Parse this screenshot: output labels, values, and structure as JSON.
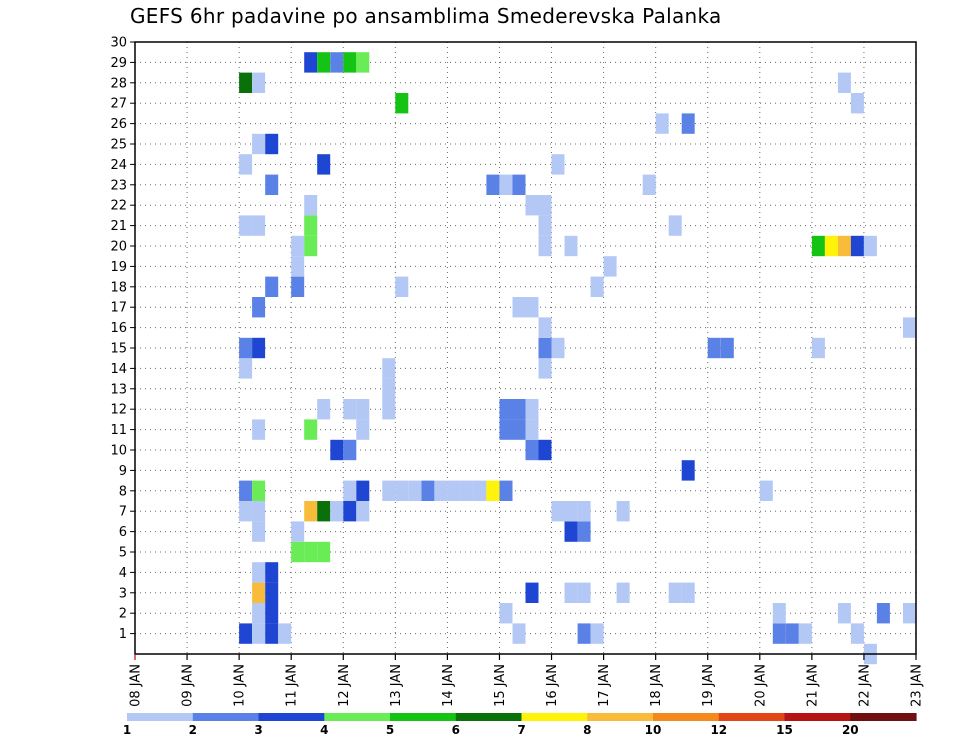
{
  "chart_data": {
    "type": "heatmap",
    "title": "GEFS 6hr padavine po ansamblima Smederevska Palanka",
    "x_tick_labels": [
      "08 JAN",
      "09 JAN",
      "10 JAN",
      "11 JAN",
      "12 JAN",
      "13 JAN",
      "14 JAN",
      "15 JAN",
      "16 JAN",
      "17 JAN",
      "18 JAN",
      "19 JAN",
      "20 JAN",
      "21 JAN",
      "22 JAN",
      "23 JAN"
    ],
    "y_tick_labels": [
      "1",
      "2",
      "3",
      "4",
      "5",
      "6",
      "7",
      "8",
      "9",
      "10",
      "11",
      "12",
      "13",
      "14",
      "15",
      "16",
      "17",
      "18",
      "19",
      "20",
      "21",
      "22",
      "23",
      "24",
      "25",
      "26",
      "27",
      "28",
      "29",
      "30"
    ],
    "x_range_days": [
      8,
      23
    ],
    "y_range_members": [
      0,
      30
    ],
    "grid": "dotted",
    "colorbar": {
      "placement": "bottom",
      "labels": [
        "1",
        "2",
        "3",
        "4",
        "5",
        "6",
        "7",
        "8",
        "10",
        "12",
        "15",
        "20"
      ],
      "colors": [
        "#b4c8f5",
        "#5a82e6",
        "#1e46d2",
        "#69ec55",
        "#14c314",
        "#0a700a",
        "#fff30a",
        "#f8bc3a",
        "#f48a1e",
        "#e24614",
        "#b41414",
        "#701010"
      ]
    },
    "cell_duration_days": 0.25,
    "cells": [
      {
        "t": 10.0,
        "m": 1,
        "c": 2
      },
      {
        "t": 10.25,
        "m": 1,
        "c": 0
      },
      {
        "t": 10.5,
        "m": 1,
        "c": 2
      },
      {
        "t": 10.75,
        "m": 1,
        "c": 0
      },
      {
        "t": 10.25,
        "m": 2,
        "c": 0
      },
      {
        "t": 10.5,
        "m": 2,
        "c": 2
      },
      {
        "t": 10.25,
        "m": 3,
        "c": 7
      },
      {
        "t": 10.5,
        "m": 3,
        "c": 2
      },
      {
        "t": 10.25,
        "m": 4,
        "c": 0
      },
      {
        "t": 10.5,
        "m": 4,
        "c": 2
      },
      {
        "t": 11.0,
        "m": 5,
        "c": 3
      },
      {
        "t": 11.25,
        "m": 5,
        "c": 3
      },
      {
        "t": 11.5,
        "m": 5,
        "c": 3
      },
      {
        "t": 10.25,
        "m": 6,
        "c": 0
      },
      {
        "t": 11.0,
        "m": 6,
        "c": 0
      },
      {
        "t": 10.0,
        "m": 7,
        "c": 0
      },
      {
        "t": 10.25,
        "m": 7,
        "c": 0
      },
      {
        "t": 11.25,
        "m": 7,
        "c": 7
      },
      {
        "t": 11.5,
        "m": 7,
        "c": 5
      },
      {
        "t": 11.75,
        "m": 7,
        "c": 0
      },
      {
        "t": 12.0,
        "m": 7,
        "c": 2
      },
      {
        "t": 12.25,
        "m": 7,
        "c": 0
      },
      {
        "t": 10.0,
        "m": 8,
        "c": 1
      },
      {
        "t": 10.25,
        "m": 8,
        "c": 3
      },
      {
        "t": 12.0,
        "m": 8,
        "c": 0
      },
      {
        "t": 12.25,
        "m": 8,
        "c": 2
      },
      {
        "t": 12.75,
        "m": 8,
        "c": 0
      },
      {
        "t": 13.0,
        "m": 8,
        "c": 0
      },
      {
        "t": 13.25,
        "m": 8,
        "c": 0
      },
      {
        "t": 13.5,
        "m": 8,
        "c": 1
      },
      {
        "t": 13.75,
        "m": 8,
        "c": 0
      },
      {
        "t": 14.0,
        "m": 8,
        "c": 0
      },
      {
        "t": 14.25,
        "m": 8,
        "c": 0
      },
      {
        "t": 14.5,
        "m": 8,
        "c": 0
      },
      {
        "t": 14.75,
        "m": 8,
        "c": 6
      },
      {
        "t": 15.0,
        "m": 8,
        "c": 1
      },
      {
        "t": 11.75,
        "m": 10,
        "c": 2
      },
      {
        "t": 12.0,
        "m": 10,
        "c": 1
      },
      {
        "t": 10.25,
        "m": 11,
        "c": 0
      },
      {
        "t": 11.25,
        "m": 11,
        "c": 3
      },
      {
        "t": 12.25,
        "m": 11,
        "c": 0
      },
      {
        "t": 11.5,
        "m": 12,
        "c": 0
      },
      {
        "t": 12.0,
        "m": 12,
        "c": 0
      },
      {
        "t": 12.25,
        "m": 12,
        "c": 0
      },
      {
        "t": 12.75,
        "m": 12,
        "c": 0
      },
      {
        "t": 12.75,
        "m": 13,
        "c": 0
      },
      {
        "t": 10.0,
        "m": 14,
        "c": 0
      },
      {
        "t": 12.75,
        "m": 14,
        "c": 0
      },
      {
        "t": 10.0,
        "m": 15,
        "c": 1
      },
      {
        "t": 10.25,
        "m": 15,
        "c": 2
      },
      {
        "t": 10.25,
        "m": 17,
        "c": 1
      },
      {
        "t": 10.5,
        "m": 18,
        "c": 1
      },
      {
        "t": 11.0,
        "m": 18,
        "c": 1
      },
      {
        "t": 13.0,
        "m": 18,
        "c": 0
      },
      {
        "t": 11.0,
        "m": 19,
        "c": 0
      },
      {
        "t": 11.0,
        "m": 20,
        "c": 0
      },
      {
        "t": 11.25,
        "m": 20,
        "c": 3
      },
      {
        "t": 11.25,
        "m": 21,
        "c": 3
      },
      {
        "t": 10.0,
        "m": 21,
        "c": 0
      },
      {
        "t": 10.25,
        "m": 21,
        "c": 0
      },
      {
        "t": 11.25,
        "m": 22,
        "c": 0
      },
      {
        "t": 10.5,
        "m": 23,
        "c": 1
      },
      {
        "t": 10.0,
        "m": 24,
        "c": 0
      },
      {
        "t": 11.5,
        "m": 24,
        "c": 2
      },
      {
        "t": 10.25,
        "m": 25,
        "c": 0
      },
      {
        "t": 10.5,
        "m": 25,
        "c": 2
      },
      {
        "t": 10.0,
        "m": 28,
        "c": 5
      },
      {
        "t": 10.25,
        "m": 28,
        "c": 0
      },
      {
        "t": 11.25,
        "m": 29,
        "c": 2
      },
      {
        "t": 11.5,
        "m": 29,
        "c": 4
      },
      {
        "t": 11.75,
        "m": 29,
        "c": 1
      },
      {
        "t": 12.0,
        "m": 29,
        "c": 4
      },
      {
        "t": 12.25,
        "m": 29,
        "c": 3
      },
      {
        "t": 13.0,
        "m": 27,
        "c": 4
      },
      {
        "t": 15.25,
        "m": 1,
        "c": 0
      },
      {
        "t": 15.0,
        "m": 2,
        "c": 0
      },
      {
        "t": 15.5,
        "m": 3,
        "c": 2
      },
      {
        "t": 16.25,
        "m": 3,
        "c": 0
      },
      {
        "t": 16.5,
        "m": 3,
        "c": 0
      },
      {
        "t": 17.25,
        "m": 3,
        "c": 0
      },
      {
        "t": 18.25,
        "m": 3,
        "c": 0
      },
      {
        "t": 18.5,
        "m": 3,
        "c": 0
      },
      {
        "t": 16.5,
        "m": 1,
        "c": 1
      },
      {
        "t": 16.75,
        "m": 1,
        "c": 0
      },
      {
        "t": 16.25,
        "m": 6,
        "c": 2
      },
      {
        "t": 16.5,
        "m": 6,
        "c": 1
      },
      {
        "t": 16.0,
        "m": 7,
        "c": 0
      },
      {
        "t": 16.25,
        "m": 7,
        "c": 0
      },
      {
        "t": 16.5,
        "m": 7,
        "c": 0
      },
      {
        "t": 17.25,
        "m": 7,
        "c": 0
      },
      {
        "t": 18.5,
        "m": 9,
        "c": 2
      },
      {
        "t": 15.5,
        "m": 10,
        "c": 1
      },
      {
        "t": 15.75,
        "m": 10,
        "c": 2
      },
      {
        "t": 15.0,
        "m": 11,
        "c": 1
      },
      {
        "t": 15.25,
        "m": 11,
        "c": 1
      },
      {
        "t": 15.5,
        "m": 11,
        "c": 0
      },
      {
        "t": 15.0,
        "m": 12,
        "c": 1
      },
      {
        "t": 15.25,
        "m": 12,
        "c": 1
      },
      {
        "t": 15.5,
        "m": 12,
        "c": 0
      },
      {
        "t": 15.75,
        "m": 14,
        "c": 0
      },
      {
        "t": 15.75,
        "m": 15,
        "c": 1
      },
      {
        "t": 16.0,
        "m": 15,
        "c": 0
      },
      {
        "t": 15.75,
        "m": 16,
        "c": 0
      },
      {
        "t": 15.25,
        "m": 17,
        "c": 0
      },
      {
        "t": 15.5,
        "m": 17,
        "c": 0
      },
      {
        "t": 16.75,
        "m": 18,
        "c": 0
      },
      {
        "t": 17.0,
        "m": 19,
        "c": 0
      },
      {
        "t": 15.75,
        "m": 20,
        "c": 0
      },
      {
        "t": 16.25,
        "m": 20,
        "c": 0
      },
      {
        "t": 15.75,
        "m": 21,
        "c": 0
      },
      {
        "t": 15.5,
        "m": 22,
        "c": 0
      },
      {
        "t": 15.75,
        "m": 22,
        "c": 0
      },
      {
        "t": 14.75,
        "m": 23,
        "c": 1
      },
      {
        "t": 15.0,
        "m": 23,
        "c": 0
      },
      {
        "t": 15.25,
        "m": 23,
        "c": 1
      },
      {
        "t": 16.0,
        "m": 24,
        "c": 0
      },
      {
        "t": 17.75,
        "m": 23,
        "c": 0
      },
      {
        "t": 18.25,
        "m": 21,
        "c": 0
      },
      {
        "t": 18.0,
        "m": 26,
        "c": 0
      },
      {
        "t": 18.5,
        "m": 26,
        "c": 1
      },
      {
        "t": 19.0,
        "m": 15,
        "c": 1
      },
      {
        "t": 19.25,
        "m": 15,
        "c": 1
      },
      {
        "t": 20.25,
        "m": 1,
        "c": 1
      },
      {
        "t": 20.5,
        "m": 1,
        "c": 1
      },
      {
        "t": 20.75,
        "m": 1,
        "c": 0
      },
      {
        "t": 20.25,
        "m": 2,
        "c": 0
      },
      {
        "t": 20.0,
        "m": 8,
        "c": 0
      },
      {
        "t": 21.0,
        "m": 15,
        "c": 0
      },
      {
        "t": 21.0,
        "m": 20,
        "c": 4
      },
      {
        "t": 21.25,
        "m": 20,
        "c": 6
      },
      {
        "t": 21.5,
        "m": 20,
        "c": 7
      },
      {
        "t": 21.75,
        "m": 20,
        "c": 2
      },
      {
        "t": 22.0,
        "m": 20,
        "c": 0
      },
      {
        "t": 21.5,
        "m": 28,
        "c": 0
      },
      {
        "t": 21.75,
        "m": 27,
        "c": 0
      },
      {
        "t": 21.5,
        "m": 2,
        "c": 0
      },
      {
        "t": 21.75,
        "m": 1,
        "c": 0
      },
      {
        "t": 22.0,
        "m": 0,
        "c": 0
      },
      {
        "t": 22.25,
        "m": 2,
        "c": 1
      },
      {
        "t": 22.75,
        "m": 2,
        "c": 0
      },
      {
        "t": 22.75,
        "m": 16,
        "c": 0
      }
    ]
  }
}
